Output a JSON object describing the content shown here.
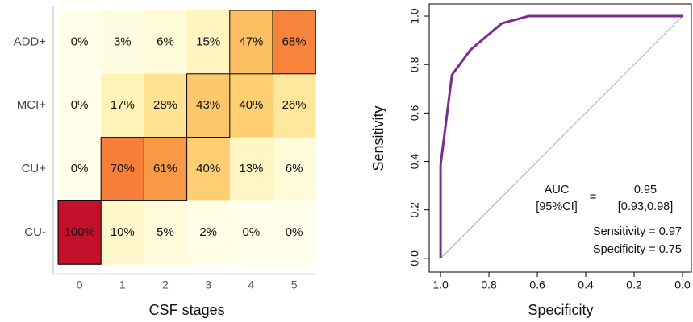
{
  "chart_data": [
    {
      "type": "heatmap",
      "x": [
        0,
        1,
        2,
        3,
        4,
        5
      ],
      "y_categories": [
        "ADD+",
        "MCI+",
        "CU+",
        "CU-"
      ],
      "xlabel": "CSF stages",
      "values": [
        [
          0,
          3,
          6,
          15,
          47,
          68
        ],
        [
          0,
          17,
          28,
          43,
          40,
          26
        ],
        [
          0,
          70,
          61,
          40,
          13,
          6
        ],
        [
          100,
          10,
          5,
          2,
          0,
          0
        ]
      ],
      "value_labels": [
        [
          "0%",
          "3%",
          "6%",
          "15%",
          "47%",
          "68%"
        ],
        [
          "0%",
          "17%",
          "28%",
          "43%",
          "40%",
          "26%"
        ],
        [
          "0%",
          "70%",
          "61%",
          "40%",
          "13%",
          "6%"
        ],
        [
          "100%",
          "10%",
          "5%",
          "2%",
          "0%",
          "0%"
        ]
      ],
      "clim": [
        0,
        100
      ],
      "colormap": [
        "#ffffea",
        "#fff3b8",
        "#fedc82",
        "#fcb95a",
        "#f8883e",
        "#f05a2a",
        "#c2122b"
      ],
      "outlined": [
        [
          3,
          0
        ],
        [
          2,
          1
        ],
        [
          2,
          2
        ],
        [
          1,
          3
        ],
        [
          0,
          4
        ],
        [
          0,
          5
        ]
      ]
    },
    {
      "type": "line",
      "xlabel": "Specificity",
      "ylabel": "Sensitivity",
      "x": [
        1.0,
        1.0,
        0.953,
        0.877,
        0.747,
        0.637,
        0.0
      ],
      "values": [
        0.0,
        0.385,
        0.757,
        0.86,
        0.97,
        1.0,
        1.0
      ],
      "color": "#7b2d8e",
      "xlim": [
        1.047,
        -0.04
      ],
      "ylim": [
        -0.057,
        1.05
      ],
      "xticks": [
        {
          "value": 1.0,
          "label": "1.0"
        },
        {
          "value": 0.8,
          "label": "0.8"
        },
        {
          "value": 0.6,
          "label": "0.6"
        },
        {
          "value": 0.4,
          "label": "0.4"
        },
        {
          "value": 0.2,
          "label": "0.2"
        },
        {
          "value": 0.0,
          "label": "0.0"
        }
      ],
      "yticks": [
        {
          "value": 0.0,
          "label": "0.0"
        },
        {
          "value": 0.2,
          "label": "0.2"
        },
        {
          "value": 0.4,
          "label": "0.4"
        },
        {
          "value": 0.6,
          "label": "0.6"
        },
        {
          "value": 0.8,
          "label": "0.8"
        },
        {
          "value": 1.0,
          "label": "1.0"
        }
      ],
      "diagonal": true,
      "annotations": [
        "AUC",
        "[95%CI]",
        "=",
        "0.95",
        "[0.93,0.98]",
        "Sensitivity = 0.97",
        "Specificity = 0.75"
      ]
    }
  ]
}
